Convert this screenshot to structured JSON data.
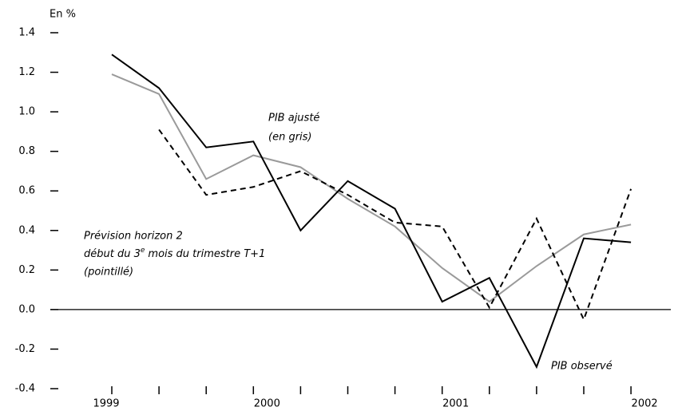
{
  "chart_data": {
    "type": "line",
    "y_label": "En %",
    "categories": [
      "1999",
      null,
      null,
      "2000",
      null,
      null,
      null,
      "2001",
      null,
      null,
      null,
      "2002"
    ],
    "series": [
      {
        "name": "PIB ajusté",
        "color": "#9a9a9a",
        "style": "solid",
        "values": [
          1.19,
          1.09,
          0.66,
          0.78,
          0.72,
          0.56,
          0.42,
          0.21,
          0.04,
          0.22,
          0.38,
          0.43
        ]
      },
      {
        "name": "Prévision horizon 2",
        "color": "#000000",
        "style": "dashed",
        "values": [
          null,
          0.91,
          0.58,
          0.62,
          0.7,
          0.58,
          0.44,
          0.42,
          0.01,
          0.46,
          -0.05,
          0.61
        ]
      },
      {
        "name": "PIB observé",
        "color": "#000000",
        "style": "solid",
        "values": [
          1.29,
          1.12,
          0.82,
          0.85,
          0.4,
          0.65,
          0.51,
          0.04,
          0.16,
          -0.29,
          0.36,
          0.34
        ]
      }
    ],
    "annotations": [
      "(en gris)",
      "début du 3",
      "e",
      "mois du trimestre T+1",
      "(pointillé)"
    ],
    "ylim": [
      -0.4,
      1.4
    ],
    "yticks": [
      1.4,
      1.2,
      {
        "value": 1,
        "label": "1.0"
      },
      0.8,
      0.6,
      0.4,
      0.2,
      {
        "value": 0,
        "label": "0.0"
      },
      -0.2,
      -0.4
    ]
  }
}
